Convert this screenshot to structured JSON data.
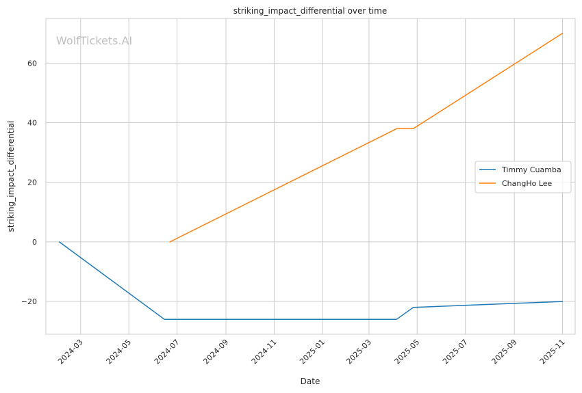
{
  "chart_data": {
    "type": "line",
    "title": "striking_impact_differential over time",
    "xlabel": "Date",
    "ylabel": "striking_impact_differential",
    "watermark": "WolfTickets.AI",
    "x_ticks": [
      "2024-03",
      "2024-05",
      "2024-07",
      "2024-09",
      "2024-11",
      "2025-01",
      "2025-03",
      "2025-05",
      "2025-07",
      "2025-09",
      "2025-11"
    ],
    "y_ticks": [
      -20,
      0,
      20,
      40,
      60
    ],
    "xlim": [
      "2024-01-17",
      "2025-11-17"
    ],
    "ylim": [
      -31,
      75
    ],
    "grid": true,
    "legend_position": "center-right",
    "series": [
      {
        "name": "Timmy Cuamba",
        "color": "#1f77b4",
        "points": [
          {
            "x": "2024-02-03",
            "y": 0
          },
          {
            "x": "2024-06-15",
            "y": -26
          },
          {
            "x": "2025-04-05",
            "y": -26
          },
          {
            "x": "2025-04-26",
            "y": -22
          },
          {
            "x": "2025-11-01",
            "y": -20
          }
        ]
      },
      {
        "name": "ChangHo Lee",
        "color": "#ff7f0e",
        "points": [
          {
            "x": "2024-06-22",
            "y": 0
          },
          {
            "x": "2025-04-05",
            "y": 38
          },
          {
            "x": "2025-04-26",
            "y": 38
          },
          {
            "x": "2025-11-01",
            "y": 70
          }
        ]
      }
    ]
  }
}
